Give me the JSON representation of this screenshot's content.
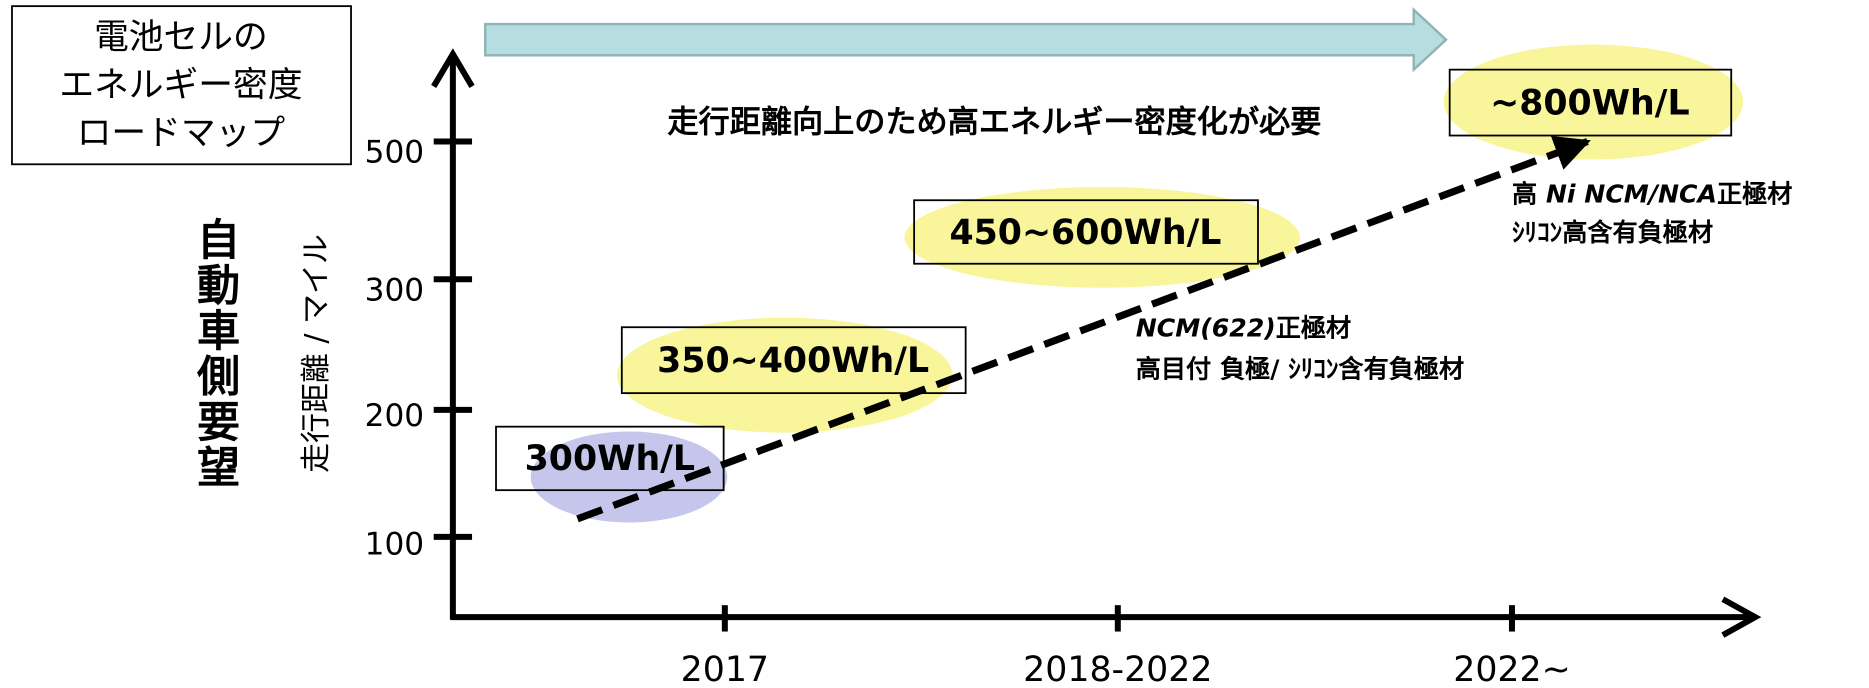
{
  "title_box": {
    "lines": [
      "電池セルの",
      "エネルギー密度",
      "ロードマップ"
    ]
  },
  "banner": "走行距離向上のため高エネルギー密度化が必要",
  "y_axis": {
    "label": "自動車側要望",
    "sublabel": "走行距離 / マイル",
    "ticks": [
      "500",
      "300",
      "200",
      "100"
    ]
  },
  "x_axis": {
    "ticks": [
      "2017",
      "2018-2022",
      "2022~"
    ]
  },
  "targets": [
    "300Wh/L",
    "350~400Wh/L",
    "450~600Wh/L",
    "~800Wh/L"
  ],
  "notes": [
    {
      "lines": [
        {
          "parts": [
            "NCM(622)",
            "正極材"
          ]
        },
        {
          "parts": [
            "高目付 負極/ ｼﾘｺﾝ含有負極材"
          ]
        }
      ]
    },
    {
      "lines": [
        {
          "parts": [
            "高 ",
            "Ni NCM/NCA",
            "正極材"
          ]
        },
        {
          "parts": [
            "ｼﾘｺﾝ高含有負極材"
          ]
        }
      ]
    }
  ]
}
